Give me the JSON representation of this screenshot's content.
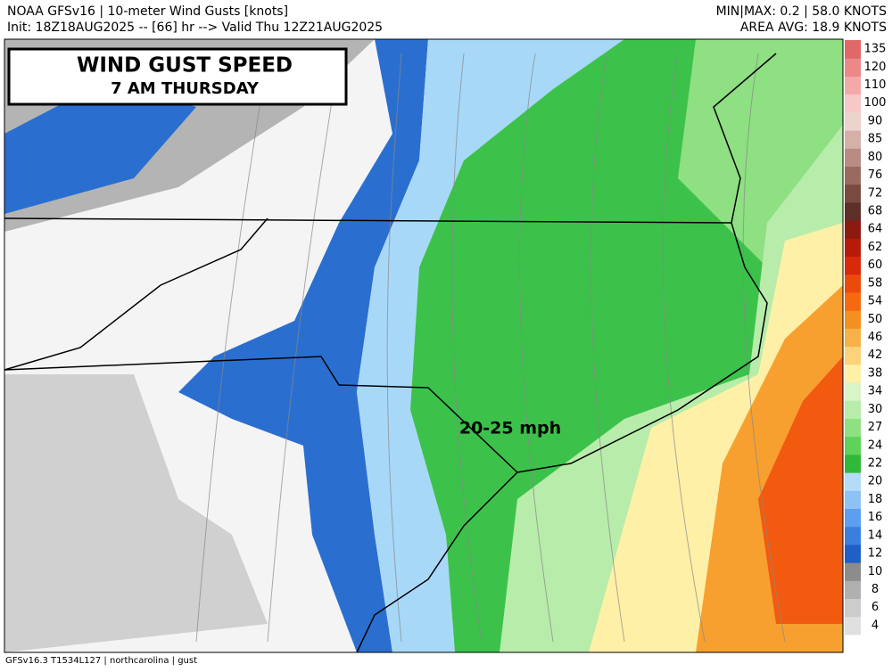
{
  "header": {
    "left_line1": "NOAA GFSv16 | 10-meter Wind Gusts [knots]",
    "left_line2": "Init: 18Z18AUG2025 -- [66] hr --> Valid Thu 12Z21AUG2025",
    "right_line1": "MIN|MAX: 0.2 | 58.0 KNOTS",
    "right_line2": "AREA AVG: 18.9 KNOTS"
  },
  "title_box": {
    "title": "WIND GUST SPEED",
    "subtitle": "7 AM THURSDAY"
  },
  "annotation": "20-25 mph",
  "footer": "GFSv16.3 T1534L127 | northcarolina | gust",
  "colorbar": {
    "levels": [
      4,
      6,
      8,
      10,
      12,
      14,
      16,
      18,
      20,
      22,
      24,
      27,
      30,
      34,
      38,
      42,
      46,
      50,
      54,
      58,
      60,
      62,
      64,
      68,
      72,
      76,
      80,
      85,
      90,
      100,
      110,
      120,
      135
    ],
    "colors": [
      "#e0e0e0",
      "#cccccc",
      "#b0b0b0",
      "#8c8c8c",
      "#1e5fc8",
      "#3a7fe0",
      "#5e9ef0",
      "#8ec2f5",
      "#b4dcf8",
      "#2fb83a",
      "#5ed25a",
      "#8ee082",
      "#b8ecaa",
      "#d8f4c8",
      "#fff0a8",
      "#fcd27a",
      "#f8b048",
      "#f59020",
      "#f56a10",
      "#ec4a0a",
      "#d82a0a",
      "#b81a0a",
      "#8c1a10",
      "#5c3028",
      "#7a4a40",
      "#9a6a60",
      "#b88c84",
      "#d4b0a8",
      "#ecd4cc",
      "#f8c8c8",
      "#f4a8a8",
      "#ec8888",
      "#e06868"
    ]
  }
}
